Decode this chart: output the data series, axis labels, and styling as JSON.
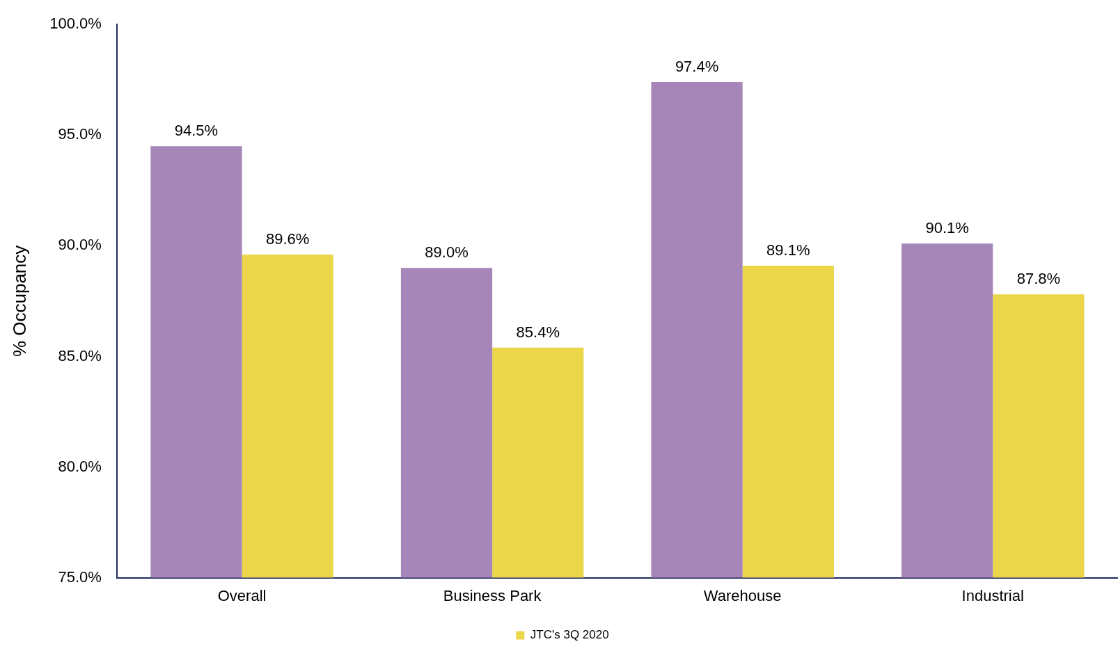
{
  "chart_data": {
    "type": "bar",
    "ylabel": "% Occupancy",
    "categories": [
      "Overall",
      "Business Park",
      "Warehouse",
      "Industrial"
    ],
    "series": [
      {
        "color": "#a685b9",
        "values": [
          94.5,
          89.0,
          97.4,
          90.1
        ],
        "value_labels": [
          "94.5%",
          "89.0%",
          "97.4%",
          "90.1%"
        ]
      },
      {
        "name": "JTC's 3Q 2020",
        "color": "#ead648",
        "values": [
          89.6,
          85.4,
          89.1,
          87.8
        ],
        "value_labels": [
          "89.6%",
          "85.4%",
          "89.1%",
          "87.8%"
        ]
      }
    ],
    "ylim": [
      75,
      100
    ],
    "yticks": [
      {
        "value": 75,
        "label": "75.0%"
      },
      {
        "value": 80,
        "label": "80.0%"
      },
      {
        "value": 85,
        "label": "85.0%"
      },
      {
        "value": 90,
        "label": "90.0%"
      },
      {
        "value": 95,
        "label": "95.0%"
      },
      {
        "value": 100,
        "label": "100.0%"
      }
    ],
    "grid": false,
    "legend": "bottom"
  }
}
